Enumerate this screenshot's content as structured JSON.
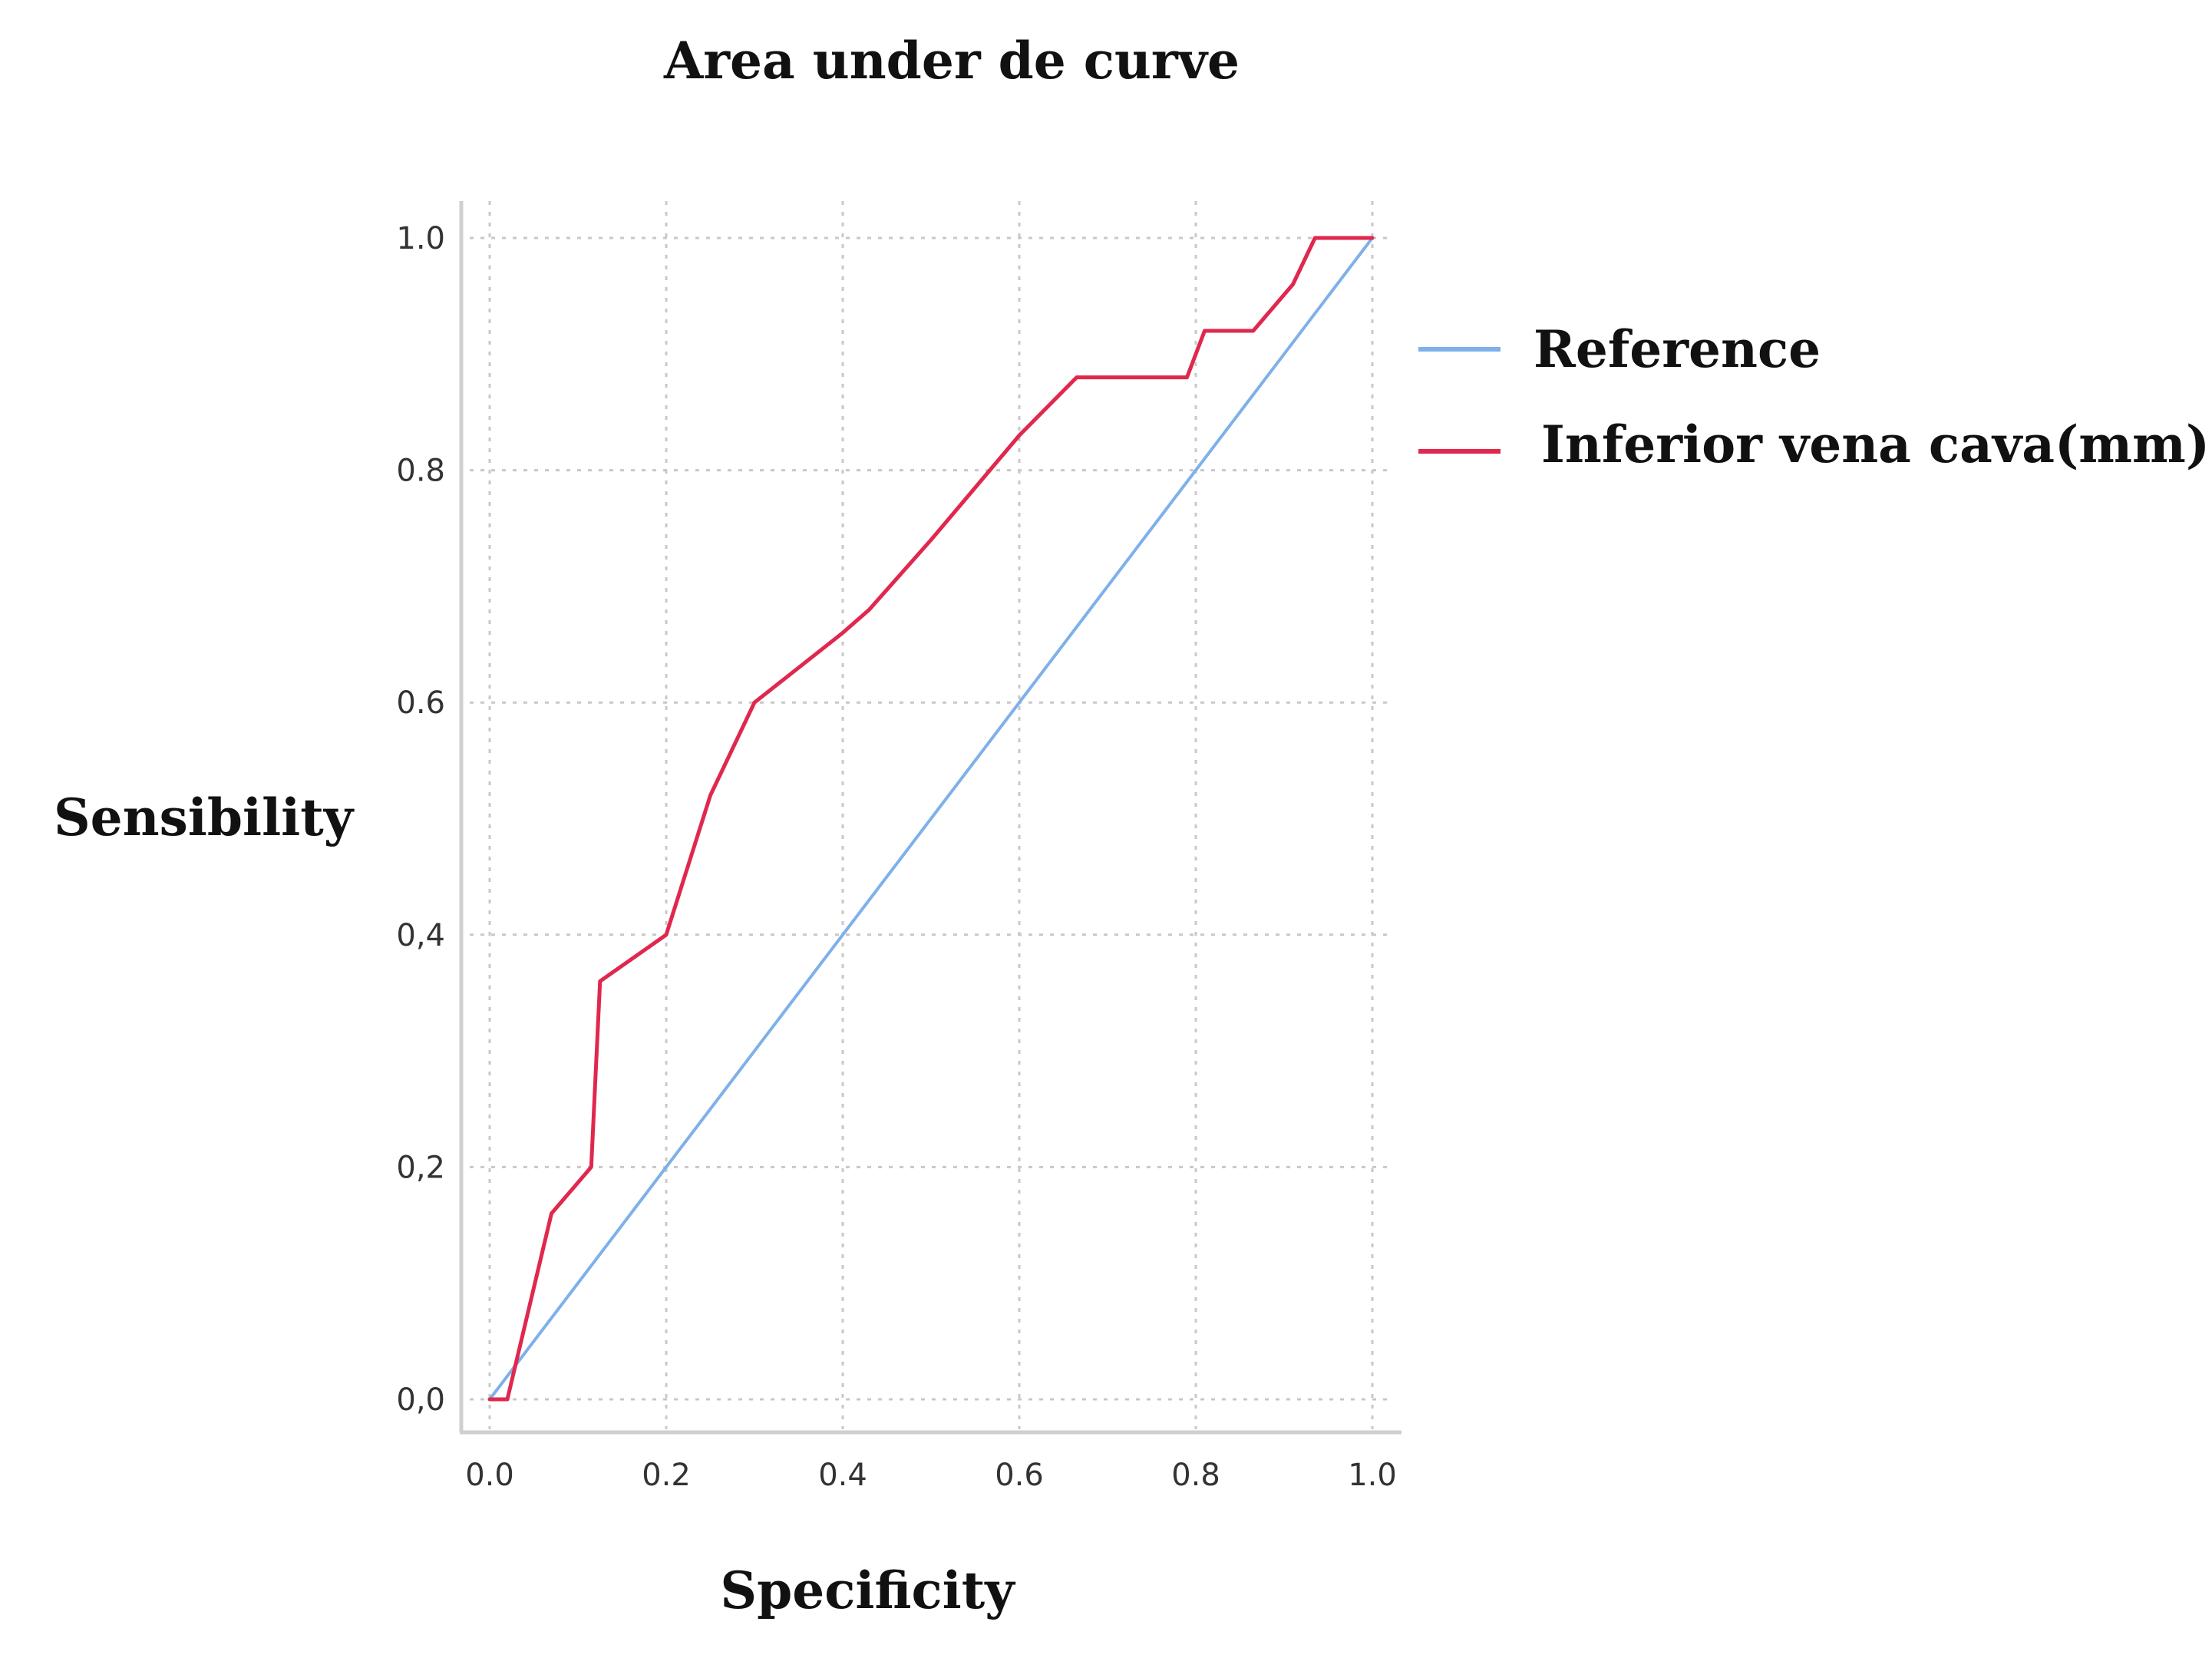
{
  "chart_data": {
    "type": "line",
    "title": "Area under de curve",
    "xlabel": "Specificity",
    "ylabel": "Sensibility",
    "xlim": [
      0,
      1
    ],
    "ylim": [
      0,
      1
    ],
    "grid": true,
    "legend_position": "right",
    "x_ticks": [
      "0.0",
      "0.2",
      "0.4",
      "0.6",
      "0.8",
      "1.0"
    ],
    "y_ticks": [
      "0,0",
      "0,2",
      "0,4",
      "0.6",
      "0.8",
      "1.0"
    ],
    "series": [
      {
        "name": "Reference",
        "color": "#7eb0ea",
        "points": [
          [
            0,
            0
          ],
          [
            1,
            1
          ]
        ]
      },
      {
        "name": "Inferior vena cava(mm)",
        "color": "#e0284e",
        "points": [
          [
            0.0,
            0.0
          ],
          [
            0.02,
            0.0
          ],
          [
            0.07,
            0.16
          ],
          [
            0.115,
            0.2
          ],
          [
            0.125,
            0.36
          ],
          [
            0.2,
            0.4
          ],
          [
            0.25,
            0.52
          ],
          [
            0.3,
            0.6
          ],
          [
            0.4,
            0.66
          ],
          [
            0.43,
            0.68
          ],
          [
            0.5,
            0.74
          ],
          [
            0.6,
            0.83
          ],
          [
            0.665,
            0.88
          ],
          [
            0.79,
            0.88
          ],
          [
            0.81,
            0.92
          ],
          [
            0.865,
            0.92
          ],
          [
            0.91,
            0.96
          ],
          [
            0.935,
            1.0
          ],
          [
            1.0,
            1.0
          ]
        ]
      }
    ]
  }
}
